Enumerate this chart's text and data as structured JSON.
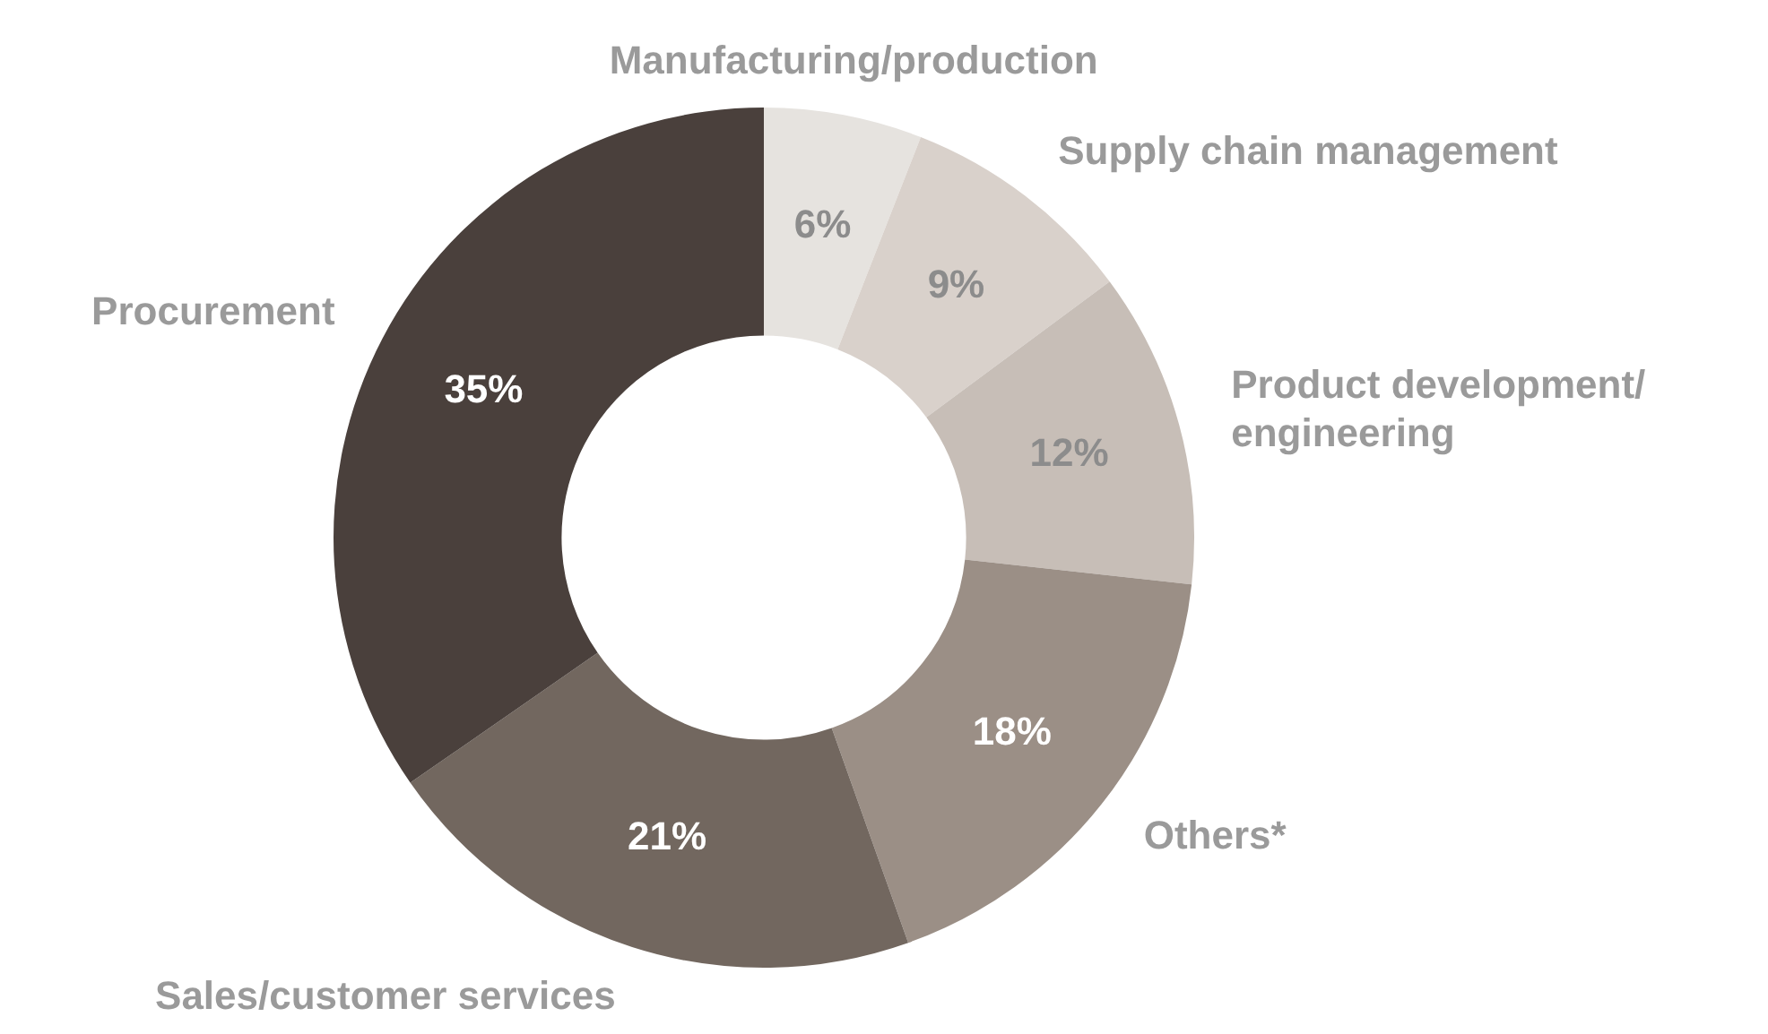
{
  "chart_data": {
    "type": "donut",
    "categories": [
      "Manufacturing/production",
      "Supply chain management",
      "Product development/ engineering",
      "Others*",
      "Sales/customer services",
      "Procurement"
    ],
    "values": [
      6,
      9,
      12,
      18,
      21,
      35
    ],
    "value_labels": [
      "6%",
      "9%",
      "12%",
      "18%",
      "21%",
      "35%"
    ],
    "colors": [
      "#e6e3df",
      "#d9d1cb",
      "#c7beb7",
      "#9b8f86",
      "#72675f",
      "#4a403c"
    ],
    "legend": false
  }
}
